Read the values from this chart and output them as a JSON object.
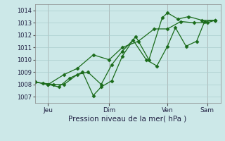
{
  "bg_color": "#cce8e8",
  "grid_color": "#aacece",
  "line_color": "#1a6b1a",
  "marker_color": "#1a6b1a",
  "xlabel": "Pression niveau de la mer( hPa )",
  "ylim": [
    1006.5,
    1014.5
  ],
  "yticks": [
    1007,
    1008,
    1009,
    1010,
    1011,
    1012,
    1013,
    1014
  ],
  "xlim": [
    0,
    7.0
  ],
  "xtick_positions": [
    0.5,
    2.8,
    5.0,
    6.5
  ],
  "xtick_labels": [
    "Jeu",
    "Dim",
    "Ven",
    "Sam"
  ],
  "vline_positions": [
    0.5,
    2.8,
    5.0,
    6.5
  ],
  "series1_x": [
    0.0,
    0.5,
    1.1,
    1.6,
    2.2,
    2.8,
    3.3,
    3.9,
    4.5,
    5.0,
    5.5,
    6.0,
    6.5,
    6.8
  ],
  "series1_y": [
    1008.2,
    1008.0,
    1008.8,
    1009.3,
    1010.4,
    1010.0,
    1011.0,
    1011.5,
    1012.5,
    1012.5,
    1013.1,
    1013.0,
    1013.0,
    1013.2
  ],
  "series2_x": [
    0.0,
    0.5,
    0.9,
    1.3,
    1.8,
    2.2,
    2.5,
    2.9,
    3.3,
    3.8,
    4.3,
    4.8,
    5.0,
    5.4,
    5.8,
    6.3,
    6.8
  ],
  "series2_y": [
    1008.2,
    1008.0,
    1007.8,
    1008.5,
    1009.0,
    1007.1,
    1007.8,
    1008.3,
    1010.3,
    1011.9,
    1010.0,
    1013.4,
    1013.8,
    1013.3,
    1013.5,
    1013.2,
    1013.2
  ],
  "series3_x": [
    0.0,
    0.3,
    0.7,
    1.1,
    1.6,
    2.0,
    2.5,
    2.9,
    3.3,
    3.7,
    4.2,
    4.6,
    5.0,
    5.3,
    5.7,
    6.1,
    6.4,
    6.8
  ],
  "series3_y": [
    1008.2,
    1008.1,
    1008.0,
    1008.0,
    1008.8,
    1009.0,
    1008.0,
    1009.6,
    1010.7,
    1011.6,
    1010.0,
    1009.5,
    1011.1,
    1012.6,
    1011.1,
    1011.5,
    1013.1,
    1013.2
  ]
}
